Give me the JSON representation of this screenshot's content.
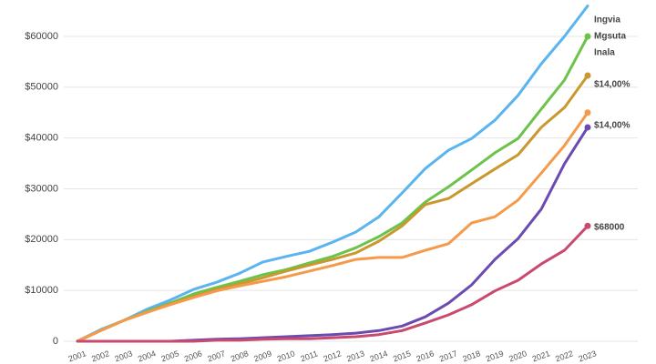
{
  "chart_data": {
    "type": "line",
    "categories": [
      "2001",
      "2002",
      "2003",
      "2004",
      "2005",
      "2006",
      "2007",
      "2008",
      "2009",
      "2010",
      "2011",
      "2012",
      "2013",
      "2014",
      "2015",
      "2016",
      "2017",
      "2018",
      "2019",
      "2020",
      "2021",
      "2022",
      "2023"
    ],
    "series": [
      {
        "name": "Ingvia",
        "color": "#5ab4f0",
        "values": [
          0,
          2300,
          4100,
          6300,
          8100,
          10200,
          11600,
          13400,
          15600,
          16700,
          17700,
          19500,
          21500,
          24500,
          29200,
          34000,
          37600,
          39900,
          43500,
          48400,
          54600,
          60000,
          66000
        ]
      },
      {
        "name": "Mgsuta",
        "color": "#6cc24a",
        "values": [
          0,
          2100,
          4100,
          5900,
          7500,
          9300,
          10600,
          11800,
          13100,
          14100,
          15400,
          16700,
          18400,
          20600,
          23300,
          27400,
          30400,
          33700,
          37100,
          39900,
          45700,
          51400,
          60000
        ]
      },
      {
        "name": "Inala",
        "color": "#c9982e",
        "values": [
          0,
          2100,
          4100,
          5700,
          7300,
          8800,
          10200,
          11300,
          12500,
          13800,
          15000,
          16100,
          17400,
          19700,
          22700,
          26900,
          28100,
          31000,
          33900,
          36700,
          42100,
          46000,
          52300
        ]
      },
      {
        "name": "$14,00%",
        "color": "#f59a4a",
        "values": [
          0,
          2100,
          4100,
          5700,
          7200,
          8600,
          9900,
          10900,
          11800,
          12700,
          13800,
          14900,
          16100,
          16500,
          16500,
          17900,
          19200,
          23300,
          24500,
          27800,
          33100,
          38500,
          45000
        ]
      },
      {
        "name": "$14,00%",
        "color": "#6a4bb0",
        "values": [
          0,
          0,
          0,
          0,
          0,
          200,
          400,
          500,
          700,
          900,
          1100,
          1300,
          1600,
          2100,
          3000,
          4800,
          7500,
          11100,
          16100,
          20200,
          26000,
          34900,
          42100
        ]
      },
      {
        "name": "$68000",
        "color": "#c94a6e",
        "values": [
          0,
          0,
          0,
          0,
          0,
          0,
          200,
          200,
          400,
          500,
          500,
          700,
          900,
          1300,
          2100,
          3600,
          5200,
          7200,
          9900,
          12000,
          15200,
          17900,
          22700
        ]
      }
    ],
    "ylim": [
      0,
      60000
    ],
    "yticks": [
      {
        "value": 0,
        "label": "0"
      },
      {
        "value": 10000,
        "label": "$10000"
      },
      {
        "value": 20000,
        "label": "$20000"
      },
      {
        "value": 30000,
        "label": "$30000"
      },
      {
        "value": 40000,
        "label": "$40000"
      },
      {
        "value": 50000,
        "label": "$50000"
      },
      {
        "value": 60000,
        "label": "$60000"
      }
    ],
    "grid": true
  }
}
